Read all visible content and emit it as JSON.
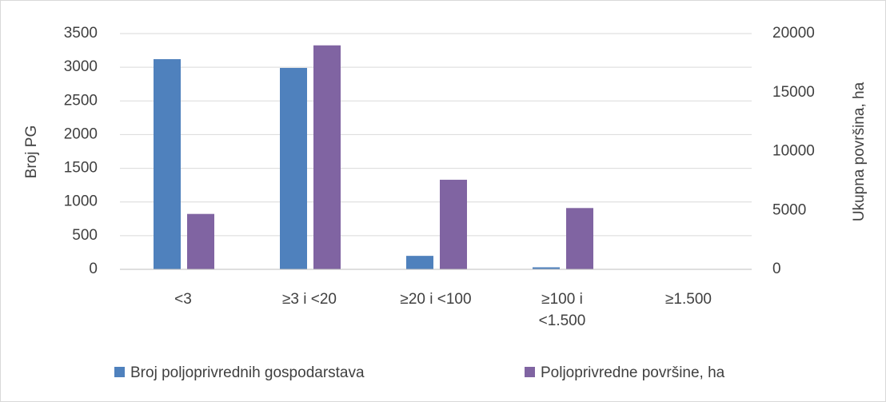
{
  "chart_data": {
    "type": "bar",
    "categories": [
      "<3",
      "≥3 i <20",
      "≥20 i <100",
      "≥100 i <1.500",
      "≥1.500"
    ],
    "series": [
      {
        "name": "Broj poljoprivrednih gospodarstava",
        "color": "#4f81bd",
        "values": [
          3120,
          2990,
          200,
          30,
          0
        ]
      },
      {
        "name": "Poljoprivredne površine, ha",
        "color": "#8064a2",
        "axis": "y2",
        "values": [
          4700,
          19000,
          7600,
          5200,
          0
        ]
      }
    ],
    "ylabel": "Broj PG",
    "y2label": "Ukupna površina, ha",
    "ylim": [
      0,
      3500
    ],
    "yticks": [
      0,
      500,
      1000,
      1500,
      2000,
      2500,
      3000,
      3500
    ],
    "y2lim": [
      0,
      20000
    ],
    "y2ticks": [
      0,
      5000,
      10000,
      15000,
      20000
    ],
    "grid": true,
    "legend": "bottom"
  }
}
